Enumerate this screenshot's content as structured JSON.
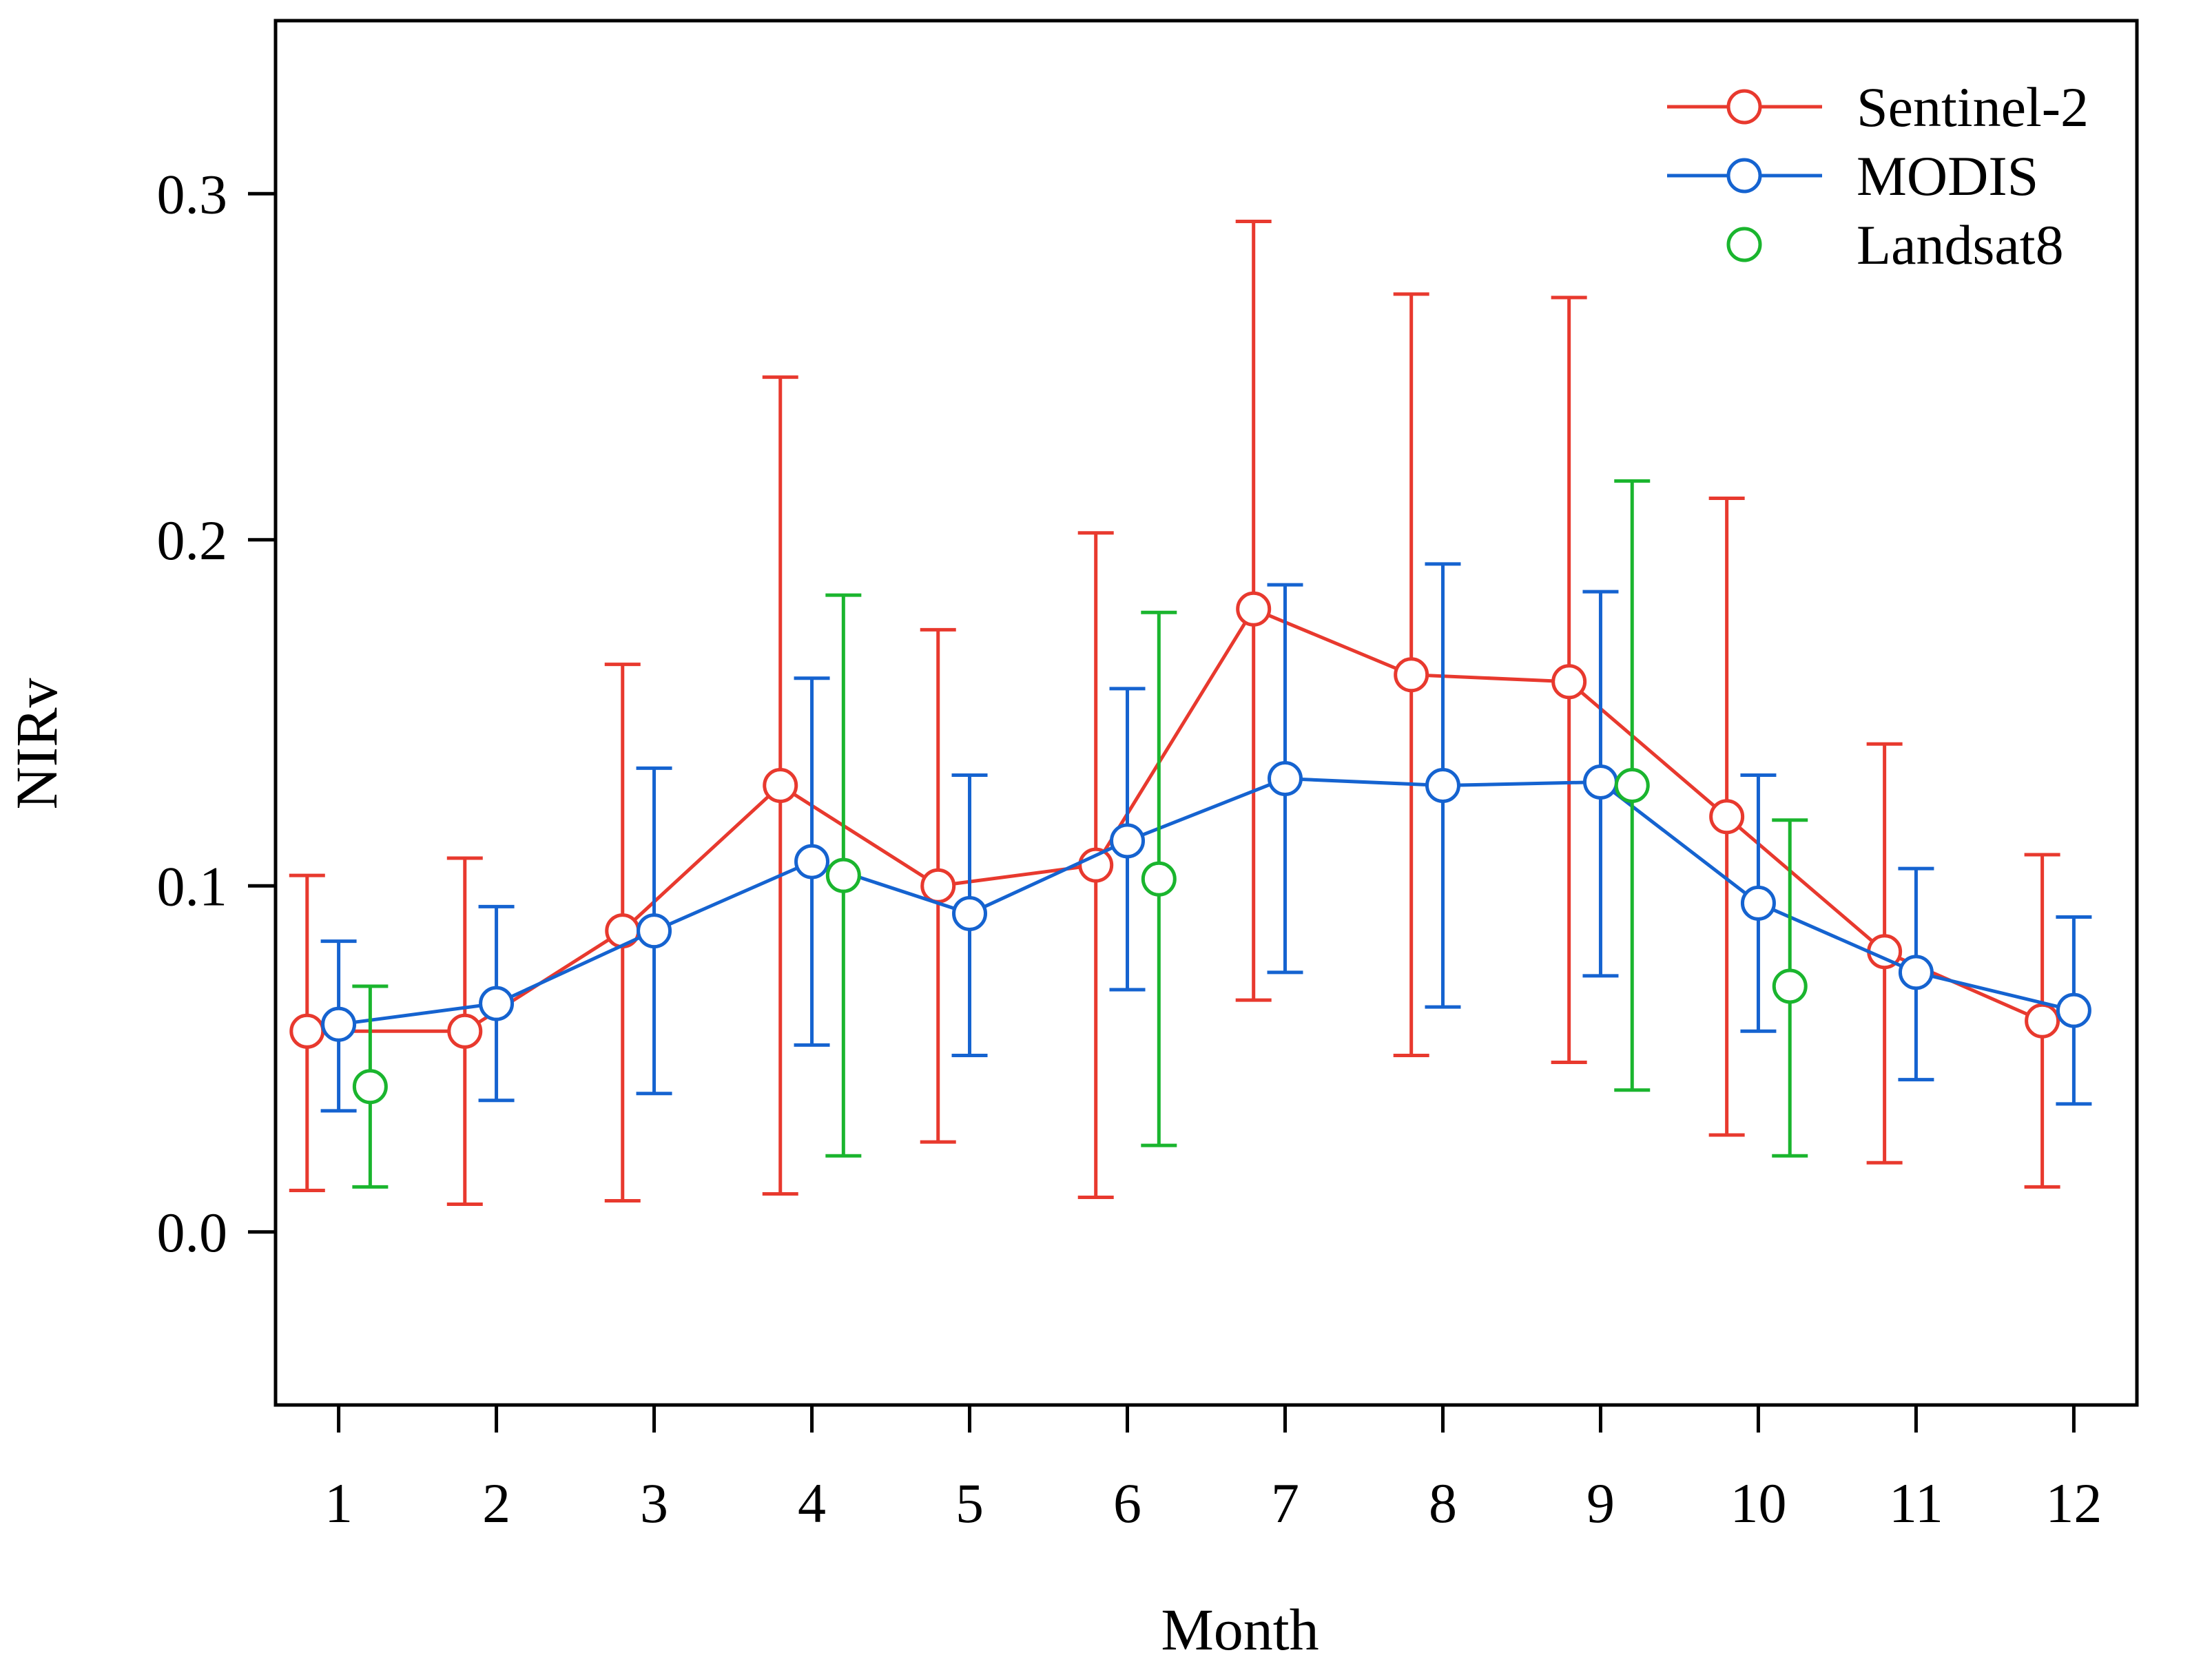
{
  "chart_data": {
    "type": "line",
    "title": "",
    "xlabel": "Month",
    "ylabel": "NIRv",
    "xlim": [
      0.6,
      12.4
    ],
    "ylim": [
      -0.05,
      0.35
    ],
    "x_ticks": [
      1,
      2,
      3,
      4,
      5,
      6,
      7,
      8,
      9,
      10,
      11,
      12
    ],
    "x_tick_labels": [
      "1",
      "2",
      "3",
      "4",
      "5",
      "6",
      "7",
      "8",
      "9",
      "10",
      "11",
      "12"
    ],
    "y_ticks": [
      0.0,
      0.1,
      0.2,
      0.3
    ],
    "y_tick_labels": [
      "0.0",
      "0.1",
      "0.2",
      "0.3"
    ],
    "grid": false,
    "legend_position": "top-right",
    "series": [
      {
        "name": "Sentinel-2",
        "color": "#e8392e",
        "connected": true,
        "x_offset": -0.2,
        "values": [
          0.058,
          0.058,
          0.087,
          0.129,
          0.1,
          0.106,
          0.18,
          0.161,
          0.159,
          0.12,
          0.081,
          0.061
        ],
        "lower": [
          0.012,
          0.008,
          0.009,
          0.011,
          0.026,
          0.01,
          0.067,
          0.051,
          0.049,
          0.028,
          0.02,
          0.013
        ],
        "upper": [
          0.103,
          0.108,
          0.164,
          0.247,
          0.174,
          0.202,
          0.292,
          0.271,
          0.27,
          0.212,
          0.141,
          0.109
        ]
      },
      {
        "name": "MODIS",
        "color": "#1563d0",
        "connected": true,
        "x_offset": 0.0,
        "values": [
          0.06,
          0.066,
          0.087,
          0.107,
          0.092,
          0.113,
          0.131,
          0.129,
          0.13,
          0.095,
          0.075,
          0.064
        ],
        "lower": [
          0.035,
          0.038,
          0.04,
          0.054,
          0.051,
          0.07,
          0.075,
          0.065,
          0.074,
          0.058,
          0.044,
          0.037
        ],
        "upper": [
          0.084,
          0.094,
          0.134,
          0.16,
          0.132,
          0.157,
          0.187,
          0.193,
          0.185,
          0.132,
          0.105,
          0.091
        ]
      },
      {
        "name": "Landsat8",
        "color": "#1ab52e",
        "connected": false,
        "x_offset": 0.2,
        "values": [
          0.042,
          null,
          null,
          0.103,
          null,
          0.102,
          null,
          null,
          0.129,
          0.071,
          null,
          null
        ],
        "lower": [
          0.013,
          null,
          null,
          0.022,
          null,
          0.025,
          null,
          null,
          0.041,
          0.022,
          null,
          null
        ],
        "upper": [
          0.071,
          null,
          null,
          0.184,
          null,
          0.179,
          null,
          null,
          0.217,
          0.119,
          null,
          null
        ]
      }
    ]
  }
}
